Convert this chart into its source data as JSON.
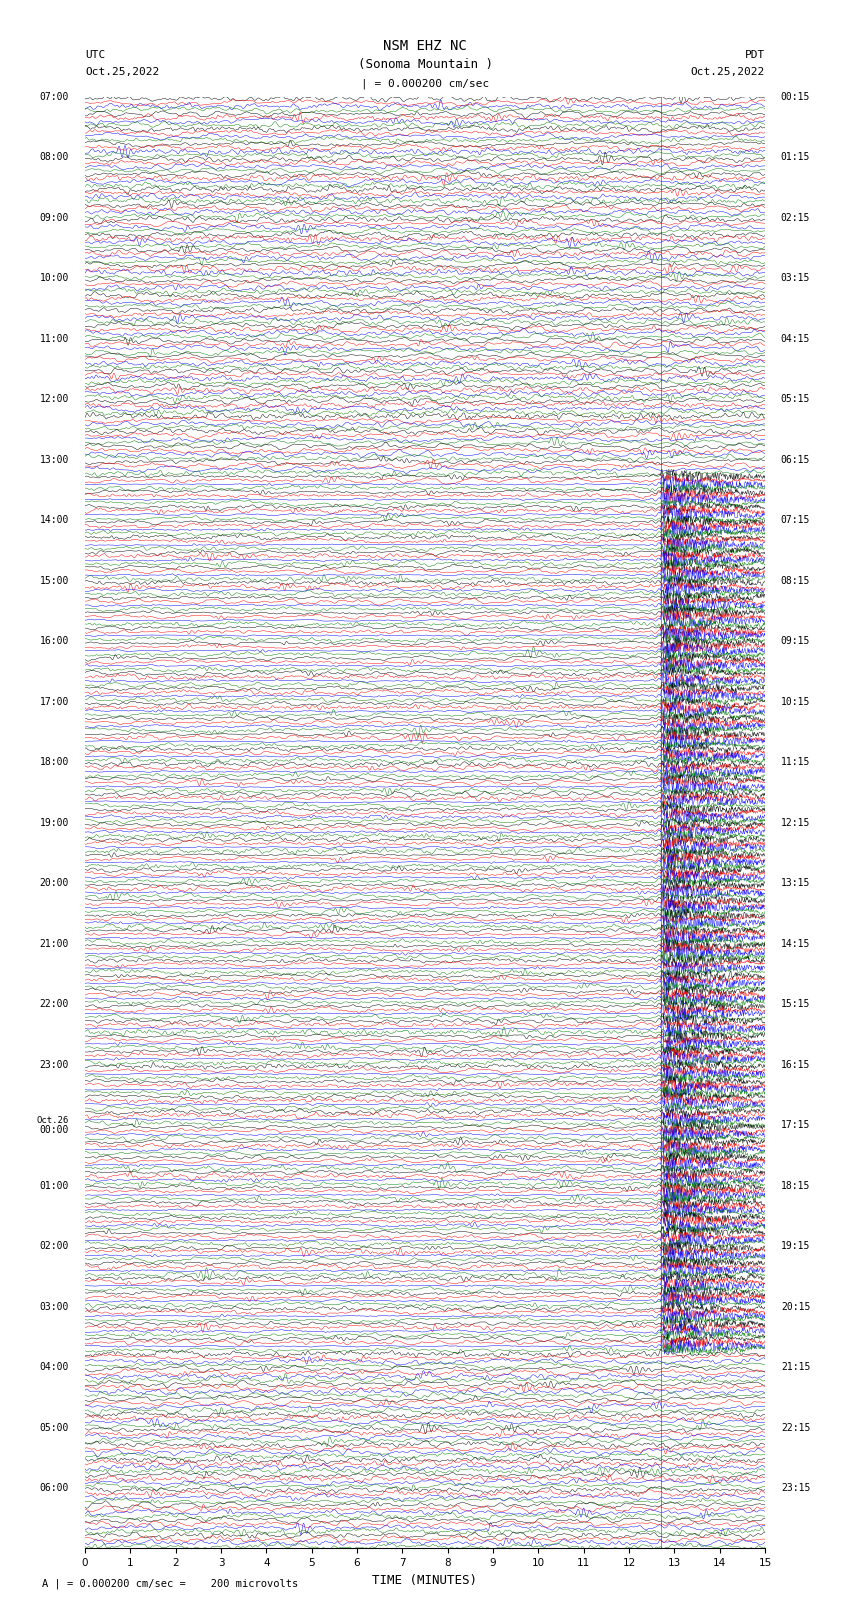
{
  "title_line1": "NSM EHZ NC",
  "title_line2": "(Sonoma Mountain )",
  "scale_label": "| = 0.000200 cm/sec",
  "left_label_top": "UTC",
  "left_label_date": "Oct.25,2022",
  "right_label_top": "PDT",
  "right_label_date": "Oct.25,2022",
  "xlabel": "TIME (MINUTES)",
  "footnote": "A | = 0.000200 cm/sec =    200 microvolts",
  "utc_times_hourly": [
    "07:00",
    "08:00",
    "09:00",
    "10:00",
    "11:00",
    "12:00",
    "13:00",
    "14:00",
    "15:00",
    "16:00",
    "17:00",
    "18:00",
    "19:00",
    "20:00",
    "21:00",
    "22:00",
    "23:00",
    "Oct.26",
    "00:00",
    "01:00",
    "02:00",
    "03:00",
    "04:00",
    "05:00",
    "06:00"
  ],
  "pdt_times_hourly": [
    "00:15",
    "01:15",
    "02:15",
    "03:15",
    "04:15",
    "05:15",
    "06:15",
    "07:15",
    "08:15",
    "09:15",
    "10:15",
    "11:15",
    "12:15",
    "13:15",
    "14:15",
    "15:15",
    "16:15",
    "17:15",
    "18:15",
    "19:15",
    "20:15",
    "21:15",
    "22:15",
    "23:15"
  ],
  "num_rows": 96,
  "traces_per_row": 4,
  "colors": [
    "black",
    "red",
    "blue",
    "green"
  ],
  "event_time_minutes": 12.7,
  "figsize": [
    8.5,
    16.13
  ],
  "dpi": 100,
  "bg_color": "white",
  "xmin": 0,
  "xmax": 15,
  "xticks": [
    0,
    1,
    2,
    3,
    4,
    5,
    6,
    7,
    8,
    9,
    10,
    11,
    12,
    13,
    14,
    15
  ]
}
